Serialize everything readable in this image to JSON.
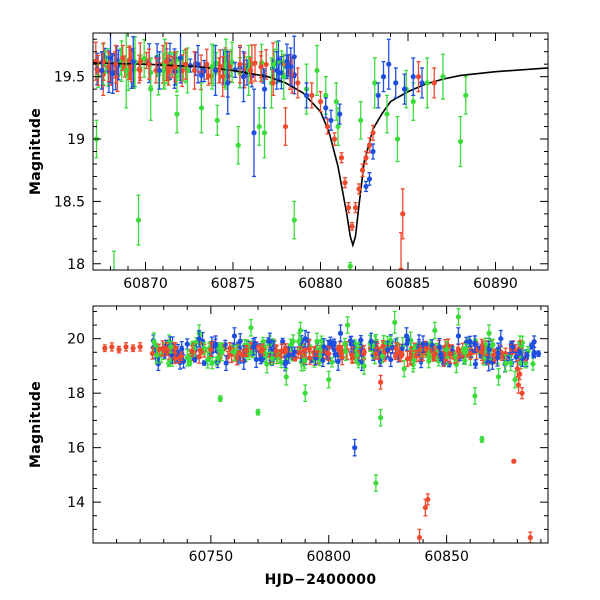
{
  "colors": {
    "green": "#3ddc3d",
    "red": "#f04a2e",
    "blue": "#1f4fe0",
    "model": "#000000"
  },
  "chart_data": [
    {
      "type": "scatter",
      "title": "",
      "xlabel": "",
      "ylabel": "Magnitude",
      "xlim": [
        60867,
        60893
      ],
      "ylim": [
        19.85,
        17.95
      ],
      "y_inverted": true,
      "xticks": [
        60870,
        60875,
        60880,
        60885,
        60890
      ],
      "xtick_labels": [
        "60870",
        "60875",
        "60880",
        "60885",
        "60890"
      ],
      "yticks": [
        18,
        18.5,
        19,
        19.5
      ],
      "ytick_labels": [
        "18",
        "18.5",
        "19",
        "19.5"
      ],
      "model_curve": {
        "name": "",
        "x": [
          60867,
          60870,
          60873,
          60875,
          60877,
          60878,
          60879,
          60880,
          60880.5,
          60881,
          60881.5,
          60881.7,
          60881.85,
          60882,
          60882.2,
          60882.5,
          60883,
          60883.5,
          60884,
          60885,
          60886,
          60887,
          60888,
          60890,
          60893
        ],
        "y": [
          19.61,
          19.6,
          19.58,
          19.55,
          19.5,
          19.45,
          19.37,
          19.22,
          19.05,
          18.78,
          18.4,
          18.22,
          18.15,
          18.22,
          18.47,
          18.82,
          19.08,
          19.2,
          19.3,
          19.38,
          19.44,
          19.48,
          19.51,
          19.54,
          19.57
        ]
      },
      "series": [
        {
          "color": "green",
          "x": [
            60867.2,
            60868.2,
            60868.9,
            60869.6,
            60870.3,
            60871.1,
            60871.8,
            60872.4,
            60873.2,
            60874.1,
            60874.6,
            60875.3,
            60875.9,
            60876.5,
            60877.2,
            60877.9,
            60878.5,
            60879.2,
            60879.8,
            60880.3,
            60881.0,
            60881.7,
            60882.3,
            60883.1,
            60883.8,
            60884.4,
            60885.3,
            60886.1,
            60887.0,
            60888.0,
            60888.3,
            60869.4,
            60873.8,
            60876.8,
            60880.9,
            60884.9
          ],
          "y": [
            19.0,
            17.9,
            19.55,
            18.35,
            19.4,
            19.6,
            19.2,
            19.55,
            19.25,
            19.15,
            19.6,
            18.95,
            19.55,
            19.1,
            19.45,
            19.5,
            18.35,
            19.4,
            19.55,
            19.35,
            19.1,
            17.98,
            19.15,
            19.45,
            19.2,
            19.0,
            19.3,
            19.45,
            19.5,
            18.98,
            19.35,
            19.62,
            19.58,
            19.05,
            19.3,
            19.4
          ],
          "err": [
            0.15,
            0.2,
            0.3,
            0.2,
            0.25,
            0.2,
            0.15,
            0.18,
            0.2,
            0.12,
            0.2,
            0.15,
            0.2,
            0.15,
            0.2,
            0.18,
            0.15,
            0.2,
            0.2,
            0.15,
            0.15,
            0.03,
            0.15,
            0.2,
            0.15,
            0.18,
            0.15,
            0.2,
            0.18,
            0.2,
            0.15,
            0.2,
            0.18,
            0.2,
            0.15,
            0.15
          ]
        },
        {
          "color": "red",
          "x": [
            60867.3,
            60867.6,
            60867.9,
            60868.3,
            60868.7,
            60869.2,
            60869.7,
            60870.2,
            60870.6,
            60871.2,
            60871.7,
            60872.3,
            60872.8,
            60873.5,
            60874.2,
            60874.8,
            60875.4,
            60876.0,
            60876.6,
            60877.3,
            60878.0,
            60878.7,
            60879.5,
            60880.0,
            60880.4,
            60880.8,
            60881.2,
            60881.4,
            60881.6,
            60881.8,
            60882.0,
            60882.2,
            60882.4,
            60882.6,
            60882.8,
            60883.0,
            60884.6,
            60884.7,
            60885.6,
            60886.5
          ],
          "y": [
            19.55,
            19.62,
            19.58,
            19.6,
            19.65,
            19.58,
            19.62,
            19.6,
            19.55,
            19.62,
            19.58,
            19.6,
            19.55,
            19.6,
            19.55,
            19.58,
            19.6,
            19.55,
            19.58,
            19.45,
            19.1,
            19.45,
            19.35,
            19.3,
            19.1,
            19.0,
            18.85,
            18.65,
            18.45,
            18.3,
            18.45,
            18.6,
            18.75,
            18.85,
            18.95,
            19.05,
            17.95,
            18.4,
            19.5,
            19.45
          ],
          "err": [
            0.12,
            0.15,
            0.12,
            0.15,
            0.1,
            0.12,
            0.15,
            0.12,
            0.1,
            0.15,
            0.12,
            0.12,
            0.15,
            0.12,
            0.1,
            0.12,
            0.15,
            0.1,
            0.12,
            0.1,
            0.15,
            0.12,
            0.1,
            0.08,
            0.06,
            0.05,
            0.04,
            0.04,
            0.04,
            0.03,
            0.04,
            0.04,
            0.05,
            0.05,
            0.06,
            0.06,
            0.3,
            0.2,
            0.12,
            0.12
          ]
        },
        {
          "color": "blue",
          "x": [
            60867.5,
            60868.0,
            60869.3,
            60870.8,
            60872.0,
            60873.0,
            60874.0,
            60874.7,
            60875.6,
            60876.2,
            60876.8,
            60877.5,
            60878.3,
            60879.2,
            60880.3,
            60880.6,
            60881.1,
            60882.6,
            60882.8,
            60883.0,
            60883.3,
            60883.6,
            60883.9,
            60884.3,
            60884.8,
            60885.3,
            60885.8
          ],
          "y": [
            19.55,
            19.65,
            19.62,
            19.55,
            19.65,
            19.6,
            19.55,
            19.45,
            19.5,
            19.05,
            19.4,
            19.55,
            19.58,
            19.35,
            19.25,
            19.15,
            19.2,
            18.62,
            18.68,
            18.9,
            19.35,
            19.5,
            19.6,
            19.45,
            19.4,
            19.5,
            19.45
          ],
          "err": [
            0.15,
            0.2,
            0.2,
            0.15,
            0.2,
            0.15,
            0.2,
            0.25,
            0.2,
            0.35,
            0.15,
            0.15,
            0.15,
            0.1,
            0.08,
            0.08,
            0.08,
            0.04,
            0.05,
            0.06,
            0.1,
            0.12,
            0.2,
            0.12,
            0.12,
            0.15,
            0.12
          ]
        }
      ]
    },
    {
      "type": "scatter",
      "title": "",
      "xlabel": "HJD−2400000",
      "ylabel": "Magnitude",
      "xlim": [
        60700,
        60893
      ],
      "ylim": [
        21.2,
        12.5
      ],
      "y_inverted": true,
      "xticks": [
        60750,
        60800,
        60850
      ],
      "xtick_labels": [
        "60750",
        "60800",
        "60850"
      ],
      "yticks": [
        14,
        16,
        18,
        20
      ],
      "ytick_labels": [
        "14",
        "16",
        "18",
        "20"
      ],
      "series": [
        {
          "color": "red",
          "x": [
            60705,
            60708,
            60711,
            60714,
            60717,
            60720,
            60728,
            60735,
            60742,
            60750,
            60758,
            60765,
            60772,
            60780,
            60788,
            60795,
            60800,
            60805,
            60810,
            60815,
            60820,
            60825,
            60830,
            60835,
            60840,
            60845,
            60850,
            60855,
            60860,
            60865,
            60870,
            60875,
            60880,
            60838.5,
            60841,
            60842,
            60878.5,
            60880.5,
            60881,
            60882,
            60885.5,
            60822
          ],
          "y": [
            19.65,
            19.7,
            19.6,
            19.7,
            19.65,
            19.7,
            19.6,
            19.65,
            19.55,
            19.6,
            19.65,
            19.55,
            19.6,
            19.55,
            19.5,
            19.55,
            19.45,
            19.5,
            19.4,
            19.5,
            19.45,
            19.55,
            19.5,
            19.45,
            19.5,
            19.45,
            19.5,
            19.55,
            19.45,
            19.5,
            19.4,
            19.45,
            18.9,
            12.7,
            13.8,
            14.1,
            15.5,
            18.3,
            18.7,
            18.0,
            12.7,
            18.4
          ],
          "err": [
            0.12,
            0.15,
            0.12,
            0.15,
            0.12,
            0.15,
            0.2,
            0.2,
            0.2,
            0.25,
            0.2,
            0.2,
            0.2,
            0.25,
            0.2,
            0.2,
            0.25,
            0.2,
            0.3,
            0.25,
            0.2,
            0.2,
            0.3,
            0.25,
            0.3,
            0.25,
            0.3,
            0.25,
            0.2,
            0.3,
            0.2,
            0.2,
            0.3,
            0.3,
            0.3,
            0.2,
            0.05,
            0.3,
            0.2,
            0.2,
            0.2,
            0.25
          ]
        },
        {
          "color": "green",
          "x": [
            60727,
            60733,
            60740,
            60745,
            60753,
            60760,
            60767,
            60770,
            60775,
            60782,
            60788,
            60795,
            60800,
            60808,
            60815,
            60820,
            60822,
            60828,
            60832,
            60836,
            60845,
            60850,
            60858,
            60862,
            60865,
            60868,
            60872,
            60875,
            60879,
            60754,
            60790,
            60812,
            60855
          ],
          "y": [
            19.4,
            19.7,
            19.3,
            20.2,
            19.3,
            19.5,
            20.4,
            17.3,
            19.8,
            18.6,
            20.3,
            19.9,
            18.5,
            20.5,
            19.0,
            14.7,
            17.1,
            20.6,
            18.9,
            19.2,
            20.3,
            19.6,
            19.5,
            17.9,
            16.3,
            20.2,
            18.6,
            19.1,
            18.5,
            17.8,
            18.0,
            19.4,
            20.8
          ],
          "err": [
            0.3,
            0.2,
            0.3,
            0.3,
            0.2,
            0.3,
            0.3,
            0.1,
            0.3,
            0.3,
            0.3,
            0.3,
            0.3,
            0.3,
            0.3,
            0.3,
            0.3,
            0.4,
            0.3,
            0.3,
            0.3,
            0.3,
            0.3,
            0.3,
            0.1,
            0.3,
            0.3,
            0.3,
            0.3,
            0.1,
            0.3,
            0.3,
            0.3
          ]
        },
        {
          "color": "blue",
          "x": [
            60745,
            60752,
            60760,
            60768,
            60775,
            60783,
            60790,
            60798,
            60805,
            60811,
            60818,
            60825,
            60833,
            60840,
            60847,
            60855,
            60862,
            60868,
            60873,
            60878,
            60881,
            60884,
            60887,
            60889
          ],
          "y": [
            20.0,
            19.8,
            20.1,
            19.7,
            19.9,
            19.4,
            20.0,
            19.7,
            20.2,
            16.0,
            19.9,
            19.6,
            20.1,
            19.8,
            19.7,
            20.1,
            19.8,
            19.6,
            20.0,
            19.7,
            19.5,
            19.4,
            19.4,
            19.45
          ],
          "err": [
            0.3,
            0.3,
            0.3,
            0.3,
            0.3,
            0.3,
            0.3,
            0.3,
            0.3,
            0.3,
            0.3,
            0.3,
            0.3,
            0.3,
            0.3,
            0.3,
            0.3,
            0.3,
            0.3,
            0.2,
            0.1,
            0.1,
            0.1,
            0.1
          ]
        }
      ]
    }
  ]
}
